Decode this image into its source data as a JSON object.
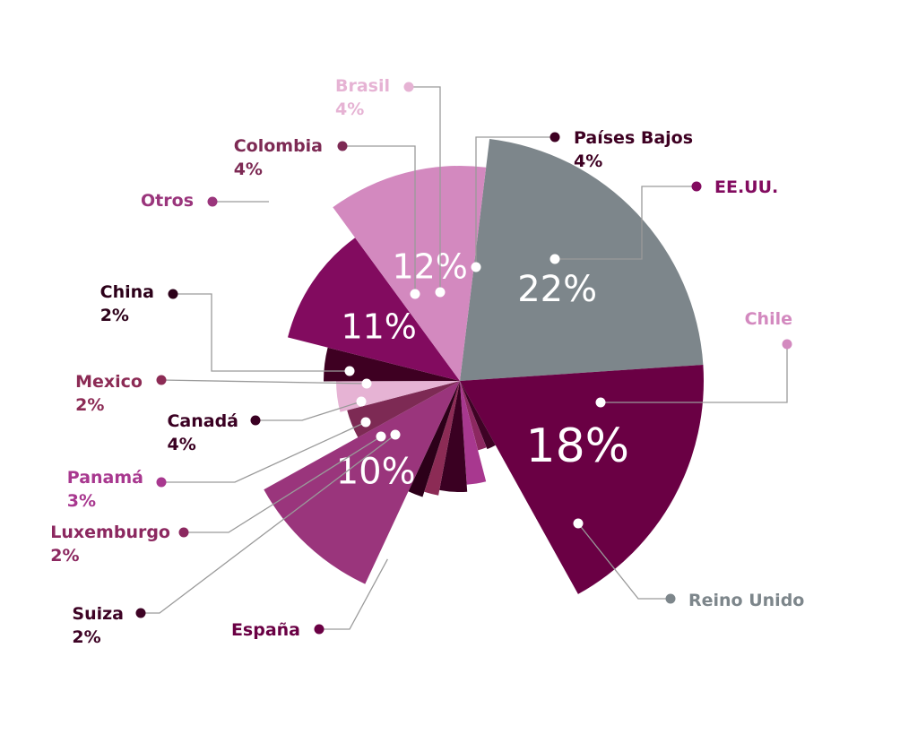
{
  "chart_data": {
    "type": "pie",
    "title": "",
    "slices": [
      {
        "label": "Reino Unido",
        "value": 22,
        "pct_text": "22%",
        "color": "#7d868b"
      },
      {
        "label": "España",
        "value": 18,
        "pct_text": "18%",
        "color": "#6a0044"
      },
      {
        "label": "Suiza",
        "value": 2,
        "pct_text": "2%",
        "color": "#3e0325"
      },
      {
        "label": "Luxemburgo",
        "value": 2,
        "pct_text": "2%",
        "color": "#8c2860"
      },
      {
        "label": "Panamá",
        "value": 3,
        "pct_text": "3%",
        "color": "#a8388f"
      },
      {
        "label": "Canadá",
        "value": 4,
        "pct_text": "4%",
        "color": "#3a0022"
      },
      {
        "label": "Mexico",
        "value": 2,
        "pct_text": "2%",
        "color": "#8c2b55"
      },
      {
        "label": "China",
        "value": 2,
        "pct_text": "2%",
        "color": "#2c0019"
      },
      {
        "label": "Otros",
        "value": 10,
        "pct_text": "10%",
        "color": "#9a357c"
      },
      {
        "label": "Colombia",
        "value": 4,
        "pct_text": "4%",
        "color": "#7d2a54"
      },
      {
        "label": "Brasil",
        "value": 4,
        "pct_text": "4%",
        "color": "#e6b3d4"
      },
      {
        "label": "Países Bajos",
        "value": 4,
        "pct_text": "4%",
        "color": "#3e0022"
      },
      {
        "label": "EE.UU.",
        "value": 11,
        "pct_text": "11%",
        "color": "#820b5f"
      },
      {
        "label": "Chile",
        "value": 12,
        "pct_text": "12%",
        "color": "#d389bf"
      }
    ]
  }
}
